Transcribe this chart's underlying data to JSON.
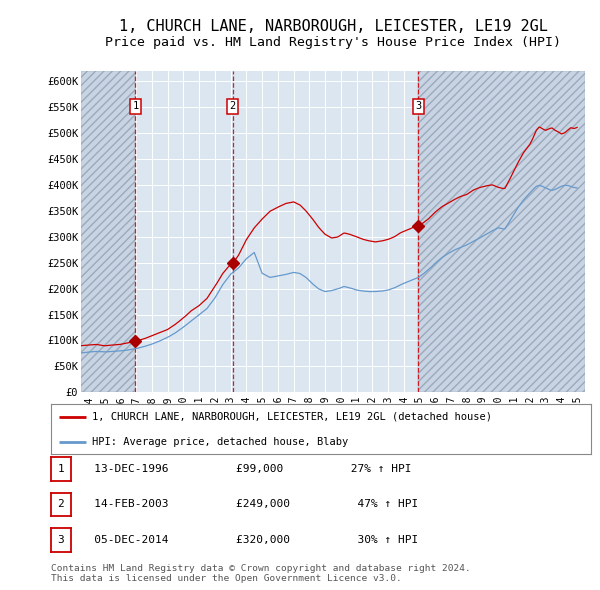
{
  "title": "1, CHURCH LANE, NARBOROUGH, LEICESTER, LE19 2GL",
  "subtitle": "Price paid vs. HM Land Registry's House Price Index (HPI)",
  "title_fontsize": 11,
  "subtitle_fontsize": 9.5,
  "ylim": [
    0,
    620000
  ],
  "yticks": [
    0,
    50000,
    100000,
    150000,
    200000,
    250000,
    300000,
    350000,
    400000,
    450000,
    500000,
    550000,
    600000
  ],
  "ytick_labels": [
    "£0",
    "£50K",
    "£100K",
    "£150K",
    "£200K",
    "£250K",
    "£300K",
    "£350K",
    "£400K",
    "£450K",
    "£500K",
    "£550K",
    "£600K"
  ],
  "xlim_start": 1993.5,
  "xlim_end": 2025.5,
  "background_color": "#ffffff",
  "plot_bg_color": "#dce6f1",
  "hatch_color": "#c8d4e3",
  "grid_color": "#ffffff",
  "sale_dates": [
    1996.96,
    2003.12,
    2014.92
  ],
  "sale_prices": [
    99000,
    249000,
    320000
  ],
  "sale_labels": [
    "1",
    "2",
    "3"
  ],
  "sale_label_rows": [
    {
      "num": "1",
      "date": "13-DEC-1996",
      "price": "£99,000",
      "hpi": "27% ↑ HPI"
    },
    {
      "num": "2",
      "date": "14-FEB-2003",
      "price": "£249,000",
      "hpi": "47% ↑ HPI"
    },
    {
      "num": "3",
      "date": "05-DEC-2014",
      "price": "£320,000",
      "hpi": "30% ↑ HPI"
    }
  ],
  "red_line_color": "#cc0000",
  "blue_line_color": "#6699cc",
  "marker_color": "#aa0000",
  "vline_color": "#cc0000",
  "legend_label_red": "1, CHURCH LANE, NARBOROUGH, LEICESTER, LE19 2GL (detached house)",
  "legend_label_blue": "HPI: Average price, detached house, Blaby",
  "footer_text": "Contains HM Land Registry data © Crown copyright and database right 2024.\nThis data is licensed under the Open Government Licence v3.0."
}
